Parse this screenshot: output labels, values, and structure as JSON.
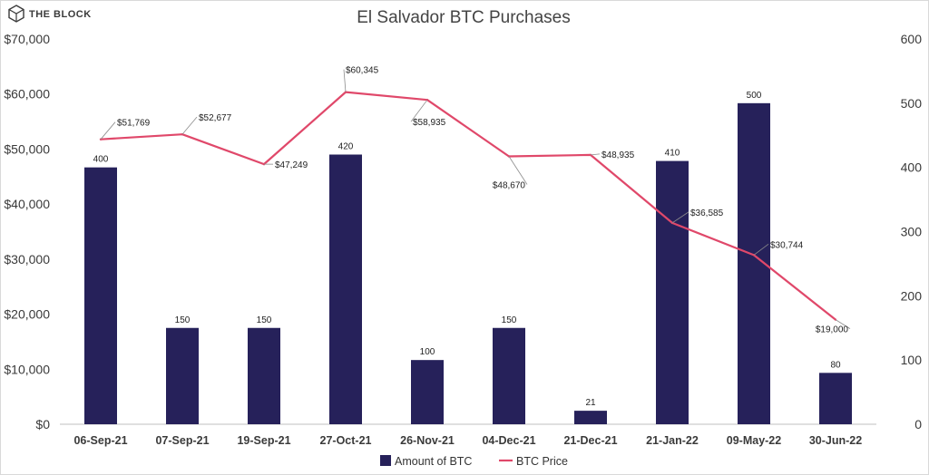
{
  "brand": {
    "name": "THE BLOCK"
  },
  "chart_data": {
    "type": "bar",
    "title": "El Salvador BTC Purchases",
    "xlabel": "",
    "ylabel": "",
    "categories": [
      "06-Sep-21",
      "07-Sep-21",
      "19-Sep-21",
      "27-Oct-21",
      "26-Nov-21",
      "04-Dec-21",
      "21-Dec-21",
      "21-Jan-22",
      "09-May-22",
      "30-Jun-22"
    ],
    "y_left": {
      "min": 0,
      "max": 70000,
      "step": 10000,
      "ticks": [
        "$0",
        "$10,000",
        "$20,000",
        "$30,000",
        "$40,000",
        "$50,000",
        "$60,000",
        "$70,000"
      ]
    },
    "y_right": {
      "min": 0,
      "max": 600,
      "step": 100,
      "ticks": [
        "0",
        "100",
        "200",
        "300",
        "400",
        "500",
        "600"
      ]
    },
    "series": [
      {
        "name": "Amount of BTC",
        "type": "bar",
        "axis": "right",
        "color": "#26215a",
        "values": [
          400,
          150,
          150,
          420,
          100,
          150,
          21,
          410,
          500,
          80
        ],
        "labels": [
          "400",
          "150",
          "150",
          "420",
          "100",
          "150",
          "21",
          "410",
          "500",
          "80"
        ]
      },
      {
        "name": "BTC Price",
        "type": "line",
        "axis": "left",
        "color": "#e0486a",
        "values": [
          51769,
          52677,
          47249,
          60345,
          58935,
          48670,
          48935,
          36585,
          30744,
          19000
        ],
        "labels": [
          "$51,769",
          "$52,677",
          "$47,249",
          "$60,345",
          "$58,935",
          "$48,670",
          "$48,935",
          "$36,585",
          "$30,744",
          "$19,000"
        ]
      }
    ],
    "grid": false,
    "legend_position": "bottom"
  }
}
